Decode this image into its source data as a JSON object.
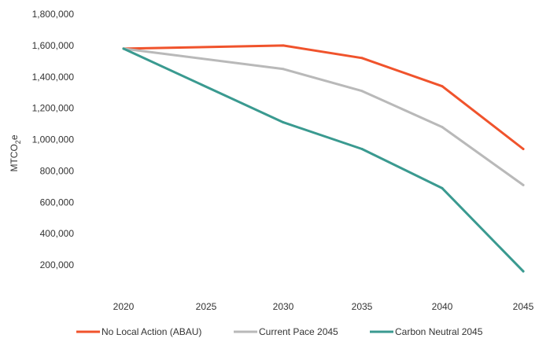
{
  "chart_data": {
    "type": "line",
    "x": [
      "2020",
      "2025",
      "2030",
      "2035",
      "2040",
      "2045"
    ],
    "ylabel_main": "MTCO",
    "ylabel_sub": "2",
    "ylabel_tail": "e",
    "ylim": [
      0,
      1800000
    ],
    "yticks": [
      "",
      "200,000",
      "400,000",
      "600,000",
      "800,000",
      "1,000,000",
      "1,200,000",
      "1,400,000",
      "1,600,000",
      "1,800,000"
    ],
    "ytick_values": [
      0,
      200000,
      400000,
      600000,
      800000,
      1000000,
      1200000,
      1400000,
      1600000,
      1800000
    ],
    "grid": false,
    "legend_position": "bottom",
    "series": [
      {
        "name": "No Local Action (ABAU)",
        "color": "#f0532c",
        "points": [
          [
            2020,
            1580000
          ],
          [
            2030,
            1600000
          ],
          [
            2035,
            1520000
          ],
          [
            2040,
            1340000
          ],
          [
            2045,
            940000
          ]
        ]
      },
      {
        "name": "Current Pace 2045",
        "color": "#b9b9b9",
        "points": [
          [
            2020,
            1580000
          ],
          [
            2030,
            1450000
          ],
          [
            2035,
            1310000
          ],
          [
            2040,
            1080000
          ],
          [
            2045,
            710000
          ]
        ]
      },
      {
        "name": "Carbon Neutral 2045",
        "color": "#3a9a90",
        "points": [
          [
            2020,
            1580000
          ],
          [
            2030,
            1110000
          ],
          [
            2035,
            940000
          ],
          [
            2040,
            690000
          ],
          [
            2045,
            160000
          ]
        ]
      }
    ]
  }
}
